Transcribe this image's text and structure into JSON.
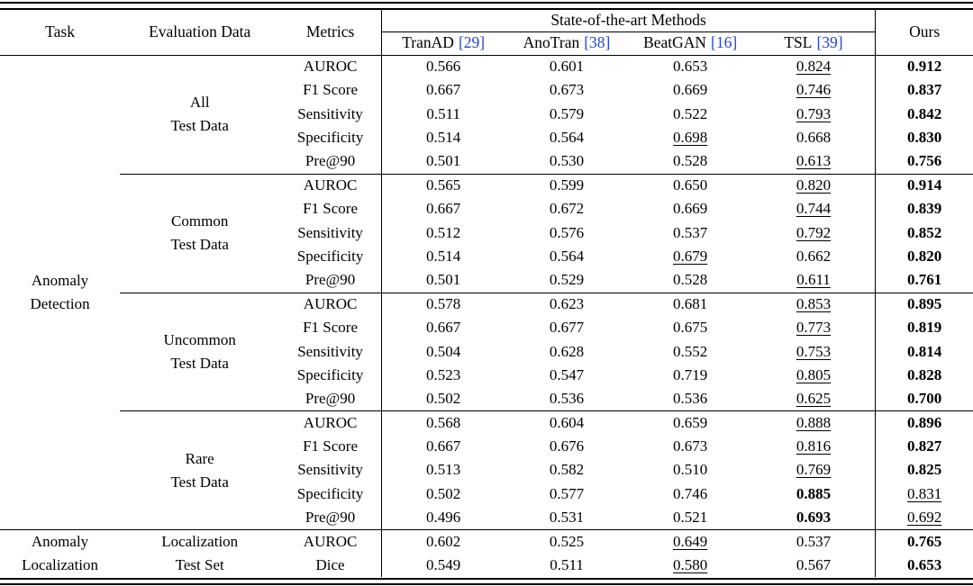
{
  "colors": {
    "citation_blue": "#2545cb",
    "text": "#000000",
    "background": "#ffffff"
  },
  "header": {
    "task": "Task",
    "evaluation_data": "Evaluation Data",
    "metrics": "Metrics",
    "sota_group": "State-of-the-art Methods",
    "methods": [
      {
        "name": "TranAD",
        "cite": "[29]"
      },
      {
        "name": "AnoTran",
        "cite": "[38]"
      },
      {
        "name": "BeatGAN",
        "cite": "[16]"
      },
      {
        "name": "TSL",
        "cite": "[39]"
      }
    ],
    "ours": "Ours"
  },
  "sections": [
    {
      "task_lines": [
        "Anomaly",
        "Detection"
      ],
      "groups": [
        {
          "eval_lines": [
            "All",
            "Test Data"
          ],
          "rows": [
            {
              "metric": "AUROC",
              "values": [
                "0.566",
                "0.601",
                "0.653",
                "0.824",
                "0.912"
              ],
              "styles": [
                "plain",
                "plain",
                "plain",
                "underline",
                "bold"
              ]
            },
            {
              "metric": "F1 Score",
              "values": [
                "0.667",
                "0.673",
                "0.669",
                "0.746",
                "0.837"
              ],
              "styles": [
                "plain",
                "plain",
                "plain",
                "underline",
                "bold"
              ]
            },
            {
              "metric": "Sensitivity",
              "values": [
                "0.511",
                "0.579",
                "0.522",
                "0.793",
                "0.842"
              ],
              "styles": [
                "plain",
                "plain",
                "plain",
                "underline",
                "bold"
              ]
            },
            {
              "metric": "Specificity",
              "values": [
                "0.514",
                "0.564",
                "0.698",
                "0.668",
                "0.830"
              ],
              "styles": [
                "plain",
                "plain",
                "underline",
                "plain",
                "bold"
              ]
            },
            {
              "metric": "Pre@90",
              "values": [
                "0.501",
                "0.530",
                "0.528",
                "0.613",
                "0.756"
              ],
              "styles": [
                "plain",
                "plain",
                "plain",
                "underline",
                "bold"
              ]
            }
          ]
        },
        {
          "eval_lines": [
            "Common",
            "Test Data"
          ],
          "rows": [
            {
              "metric": "AUROC",
              "values": [
                "0.565",
                "0.599",
                "0.650",
                "0.820",
                "0.914"
              ],
              "styles": [
                "plain",
                "plain",
                "plain",
                "underline",
                "bold"
              ]
            },
            {
              "metric": "F1 Score",
              "values": [
                "0.667",
                "0.672",
                "0.669",
                "0.744",
                "0.839"
              ],
              "styles": [
                "plain",
                "plain",
                "plain",
                "underline",
                "bold"
              ]
            },
            {
              "metric": "Sensitivity",
              "values": [
                "0.512",
                "0.576",
                "0.537",
                "0.792",
                "0.852"
              ],
              "styles": [
                "plain",
                "plain",
                "plain",
                "underline",
                "bold"
              ]
            },
            {
              "metric": "Specificity",
              "values": [
                "0.514",
                "0.564",
                "0.679",
                "0.662",
                "0.820"
              ],
              "styles": [
                "plain",
                "plain",
                "underline",
                "plain",
                "bold"
              ]
            },
            {
              "metric": "Pre@90",
              "values": [
                "0.501",
                "0.529",
                "0.528",
                "0.611",
                "0.761"
              ],
              "styles": [
                "plain",
                "plain",
                "plain",
                "underline",
                "bold"
              ]
            }
          ]
        },
        {
          "eval_lines": [
            "Uncommon",
            "Test Data"
          ],
          "rows": [
            {
              "metric": "AUROC",
              "values": [
                "0.578",
                "0.623",
                "0.681",
                "0.853",
                "0.895"
              ],
              "styles": [
                "plain",
                "plain",
                "plain",
                "underline",
                "bold"
              ]
            },
            {
              "metric": "F1 Score",
              "values": [
                "0.667",
                "0.677",
                "0.675",
                "0.773",
                "0.819"
              ],
              "styles": [
                "plain",
                "plain",
                "plain",
                "underline",
                "bold"
              ]
            },
            {
              "metric": "Sensitivity",
              "values": [
                "0.504",
                "0.628",
                "0.552",
                "0.753",
                "0.814"
              ],
              "styles": [
                "plain",
                "plain",
                "plain",
                "underline",
                "bold"
              ]
            },
            {
              "metric": "Specificity",
              "values": [
                "0.523",
                "0.547",
                "0.719",
                "0.805",
                "0.828"
              ],
              "styles": [
                "plain",
                "plain",
                "plain",
                "underline",
                "bold"
              ]
            },
            {
              "metric": "Pre@90",
              "values": [
                "0.502",
                "0.536",
                "0.536",
                "0.625",
                "0.700"
              ],
              "styles": [
                "plain",
                "plain",
                "plain",
                "underline",
                "bold"
              ]
            }
          ]
        },
        {
          "eval_lines": [
            "Rare",
            "Test Data"
          ],
          "rows": [
            {
              "metric": "AUROC",
              "values": [
                "0.568",
                "0.604",
                "0.659",
                "0.888",
                "0.896"
              ],
              "styles": [
                "plain",
                "plain",
                "plain",
                "underline",
                "bold"
              ]
            },
            {
              "metric": "F1 Score",
              "values": [
                "0.667",
                "0.676",
                "0.673",
                "0.816",
                "0.827"
              ],
              "styles": [
                "plain",
                "plain",
                "plain",
                "underline",
                "bold"
              ]
            },
            {
              "metric": "Sensitivity",
              "values": [
                "0.513",
                "0.582",
                "0.510",
                "0.769",
                "0.825"
              ],
              "styles": [
                "plain",
                "plain",
                "plain",
                "underline",
                "bold"
              ]
            },
            {
              "metric": "Specificity",
              "values": [
                "0.502",
                "0.577",
                "0.746",
                "0.885",
                "0.831"
              ],
              "styles": [
                "plain",
                "plain",
                "plain",
                "bold",
                "underline"
              ]
            },
            {
              "metric": "Pre@90",
              "values": [
                "0.496",
                "0.531",
                "0.521",
                "0.693",
                "0.692"
              ],
              "styles": [
                "plain",
                "plain",
                "plain",
                "bold",
                "underline"
              ]
            }
          ]
        }
      ]
    },
    {
      "task_lines": [
        "Anomaly",
        "Localization"
      ],
      "groups": [
        {
          "eval_lines": [
            "Localization",
            "Test Set"
          ],
          "rows": [
            {
              "metric": "AUROC",
              "values": [
                "0.602",
                "0.525",
                "0.649",
                "0.537",
                "0.765"
              ],
              "styles": [
                "plain",
                "plain",
                "underline",
                "plain",
                "bold"
              ]
            },
            {
              "metric": "Dice",
              "values": [
                "0.549",
                "0.511",
                "0.580",
                "0.567",
                "0.653"
              ],
              "styles": [
                "plain",
                "plain",
                "underline",
                "plain",
                "bold"
              ]
            }
          ]
        }
      ]
    }
  ]
}
